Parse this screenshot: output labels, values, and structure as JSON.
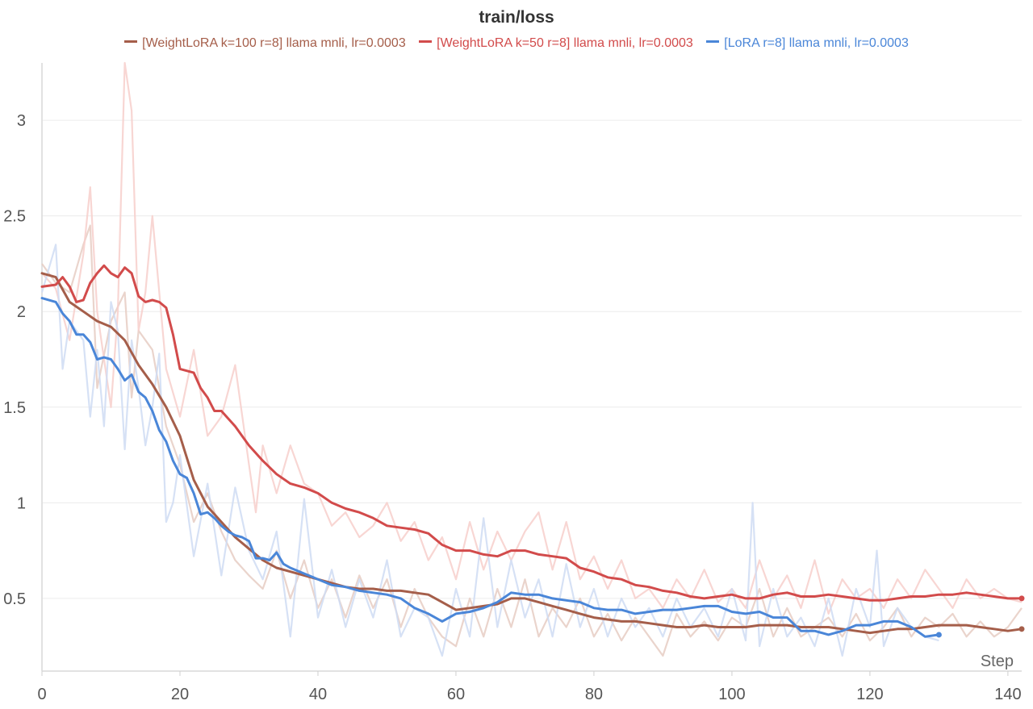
{
  "chart_data": {
    "type": "line",
    "title": "train/loss",
    "xlabel": "Step",
    "ylabel": "",
    "xlim": [
      0,
      142
    ],
    "ylim": [
      0.12,
      3.3
    ],
    "xticks": [
      0,
      20,
      40,
      60,
      80,
      100,
      120,
      140
    ],
    "yticks": [
      0.5,
      1,
      1.5,
      2,
      2.5,
      3
    ],
    "grid": true,
    "legend_position": "top-center",
    "series": [
      {
        "name": "[WeightLoRA k=100 r=8] llama mnli, lr=0.0003",
        "color": "#a55e4a",
        "raw_color": "#e6cdc3",
        "x_smooth": [
          0,
          2,
          4,
          6,
          8,
          10,
          12,
          14,
          16,
          18,
          20,
          22,
          24,
          26,
          28,
          30,
          32,
          34,
          36,
          38,
          40,
          42,
          44,
          46,
          48,
          50,
          52,
          54,
          56,
          58,
          60,
          62,
          64,
          66,
          68,
          70,
          72,
          74,
          76,
          78,
          80,
          82,
          84,
          86,
          88,
          90,
          92,
          94,
          96,
          98,
          100,
          102,
          104,
          106,
          108,
          110,
          112,
          114,
          116,
          118,
          120,
          122,
          124,
          126,
          128,
          130,
          132,
          134,
          136,
          138,
          140,
          142
        ],
        "y_smooth": [
          2.2,
          2.18,
          2.05,
          2.0,
          1.95,
          1.92,
          1.85,
          1.72,
          1.62,
          1.5,
          1.35,
          1.12,
          0.98,
          0.9,
          0.82,
          0.76,
          0.7,
          0.66,
          0.64,
          0.62,
          0.6,
          0.58,
          0.56,
          0.55,
          0.55,
          0.54,
          0.54,
          0.53,
          0.52,
          0.48,
          0.44,
          0.45,
          0.46,
          0.47,
          0.5,
          0.5,
          0.48,
          0.46,
          0.44,
          0.42,
          0.4,
          0.39,
          0.38,
          0.38,
          0.37,
          0.36,
          0.35,
          0.35,
          0.36,
          0.35,
          0.35,
          0.35,
          0.36,
          0.36,
          0.36,
          0.35,
          0.35,
          0.35,
          0.34,
          0.33,
          0.32,
          0.33,
          0.34,
          0.34,
          0.35,
          0.36,
          0.36,
          0.36,
          0.35,
          0.34,
          0.33,
          0.34
        ],
        "x_raw": [
          0,
          2,
          4,
          6,
          7,
          8,
          10,
          12,
          13,
          14,
          16,
          18,
          20,
          22,
          24,
          26,
          28,
          30,
          32,
          34,
          36,
          38,
          40,
          42,
          44,
          46,
          48,
          50,
          52,
          54,
          56,
          58,
          60,
          62,
          64,
          66,
          68,
          70,
          72,
          74,
          76,
          78,
          80,
          82,
          84,
          86,
          88,
          90,
          92,
          94,
          96,
          98,
          100,
          102,
          104,
          106,
          108,
          110,
          112,
          114,
          116,
          118,
          120,
          122,
          124,
          126,
          128,
          130,
          132,
          134,
          136,
          138,
          140,
          142
        ],
        "y_raw": [
          2.25,
          2.15,
          2.1,
          2.35,
          2.45,
          1.6,
          1.95,
          2.1,
          1.55,
          1.9,
          1.8,
          1.4,
          1.2,
          0.9,
          1.05,
          0.85,
          0.7,
          0.62,
          0.55,
          0.75,
          0.5,
          0.7,
          0.45,
          0.6,
          0.4,
          0.62,
          0.45,
          0.6,
          0.35,
          0.55,
          0.4,
          0.3,
          0.25,
          0.5,
          0.3,
          0.55,
          0.35,
          0.6,
          0.3,
          0.45,
          0.35,
          0.5,
          0.3,
          0.42,
          0.28,
          0.4,
          0.3,
          0.2,
          0.42,
          0.3,
          0.38,
          0.28,
          0.4,
          0.35,
          0.55,
          0.3,
          0.45,
          0.3,
          0.35,
          0.4,
          0.3,
          0.42,
          0.28,
          0.35,
          0.45,
          0.3,
          0.4,
          0.35,
          0.42,
          0.3,
          0.38,
          0.3,
          0.35,
          0.45
        ]
      },
      {
        "name": "[WeightLoRA k=50 r=8] llama mnli, lr=0.0003",
        "color": "#d24b4b",
        "raw_color": "#f7cfcb",
        "x_smooth": [
          0,
          2,
          3,
          4,
          5,
          6,
          7,
          8,
          9,
          10,
          11,
          12,
          13,
          14,
          15,
          16,
          17,
          18,
          19,
          20,
          22,
          23,
          24,
          25,
          26,
          28,
          29,
          30,
          32,
          34,
          36,
          38,
          40,
          42,
          44,
          46,
          48,
          50,
          52,
          54,
          56,
          58,
          60,
          62,
          64,
          66,
          68,
          70,
          72,
          74,
          76,
          78,
          80,
          82,
          84,
          86,
          88,
          90,
          92,
          94,
          96,
          98,
          100,
          102,
          104,
          106,
          108,
          110,
          112,
          114,
          116,
          118,
          120,
          122,
          124,
          126,
          128,
          130,
          132,
          134,
          136,
          138,
          140,
          142
        ],
        "y_smooth": [
          2.13,
          2.14,
          2.18,
          2.13,
          2.05,
          2.06,
          2.15,
          2.2,
          2.24,
          2.2,
          2.18,
          2.23,
          2.2,
          2.08,
          2.05,
          2.06,
          2.05,
          2.02,
          1.88,
          1.7,
          1.68,
          1.6,
          1.55,
          1.48,
          1.48,
          1.4,
          1.35,
          1.3,
          1.22,
          1.15,
          1.1,
          1.08,
          1.05,
          1.0,
          0.97,
          0.95,
          0.92,
          0.88,
          0.87,
          0.86,
          0.84,
          0.78,
          0.75,
          0.75,
          0.73,
          0.72,
          0.75,
          0.75,
          0.73,
          0.72,
          0.71,
          0.66,
          0.64,
          0.61,
          0.6,
          0.57,
          0.56,
          0.54,
          0.53,
          0.51,
          0.5,
          0.51,
          0.52,
          0.5,
          0.5,
          0.52,
          0.53,
          0.51,
          0.51,
          0.52,
          0.51,
          0.5,
          0.49,
          0.49,
          0.5,
          0.51,
          0.51,
          0.52,
          0.52,
          0.53,
          0.52,
          0.51,
          0.5,
          0.5
        ],
        "x_raw": [
          0,
          2,
          4,
          6,
          7,
          8,
          10,
          11,
          12,
          13,
          14,
          15,
          16,
          18,
          20,
          22,
          24,
          26,
          28,
          30,
          31,
          32,
          34,
          36,
          38,
          40,
          42,
          44,
          46,
          48,
          50,
          52,
          54,
          56,
          58,
          60,
          62,
          64,
          66,
          68,
          70,
          72,
          74,
          76,
          78,
          80,
          82,
          84,
          86,
          88,
          90,
          92,
          94,
          96,
          98,
          100,
          102,
          104,
          106,
          108,
          110,
          112,
          114,
          116,
          118,
          120,
          122,
          124,
          126,
          128,
          130,
          132,
          134,
          136,
          138,
          140,
          142
        ],
        "y_raw": [
          2.2,
          2.12,
          1.85,
          2.3,
          2.65,
          2.0,
          1.5,
          2.0,
          3.3,
          3.05,
          1.9,
          2.1,
          2.5,
          1.7,
          1.45,
          1.8,
          1.35,
          1.45,
          1.72,
          1.2,
          0.95,
          1.3,
          1.05,
          1.3,
          1.1,
          1.05,
          0.88,
          0.95,
          0.82,
          0.88,
          1.0,
          0.8,
          0.9,
          0.7,
          0.82,
          0.6,
          0.9,
          0.65,
          0.85,
          0.7,
          0.85,
          0.95,
          0.65,
          0.9,
          0.6,
          0.72,
          0.55,
          0.7,
          0.5,
          0.55,
          0.45,
          0.6,
          0.5,
          0.65,
          0.48,
          0.55,
          0.45,
          0.7,
          0.5,
          0.62,
          0.45,
          0.7,
          0.42,
          0.6,
          0.5,
          0.55,
          0.45,
          0.6,
          0.5,
          0.65,
          0.55,
          0.45,
          0.6,
          0.5,
          0.55,
          0.5,
          0.48
        ]
      },
      {
        "name": "[LoRA r=8] llama mnli, lr=0.0003",
        "color": "#4a86d8",
        "raw_color": "#cfdcf3",
        "x_smooth": [
          0,
          2,
          3,
          4,
          5,
          6,
          7,
          8,
          9,
          10,
          11,
          12,
          13,
          14,
          15,
          16,
          17,
          18,
          19,
          20,
          21,
          22,
          23,
          24,
          25,
          26,
          27,
          28,
          29,
          30,
          31,
          32,
          33,
          34,
          35,
          36,
          38,
          40,
          42,
          44,
          46,
          48,
          50,
          52,
          54,
          56,
          58,
          60,
          62,
          64,
          66,
          68,
          70,
          72,
          74,
          76,
          78,
          80,
          82,
          84,
          86,
          88,
          90,
          92,
          94,
          96,
          98,
          100,
          102,
          104,
          106,
          108,
          110,
          112,
          114,
          116,
          118,
          120,
          122,
          124,
          126,
          128,
          130
        ],
        "y_smooth": [
          2.07,
          2.05,
          1.99,
          1.95,
          1.88,
          1.88,
          1.84,
          1.75,
          1.76,
          1.75,
          1.7,
          1.64,
          1.67,
          1.58,
          1.55,
          1.48,
          1.38,
          1.32,
          1.22,
          1.15,
          1.13,
          1.05,
          0.94,
          0.95,
          0.92,
          0.88,
          0.85,
          0.83,
          0.82,
          0.8,
          0.71,
          0.71,
          0.7,
          0.74,
          0.68,
          0.66,
          0.63,
          0.6,
          0.57,
          0.56,
          0.54,
          0.53,
          0.52,
          0.5,
          0.45,
          0.42,
          0.38,
          0.42,
          0.43,
          0.45,
          0.48,
          0.53,
          0.52,
          0.52,
          0.5,
          0.49,
          0.48,
          0.45,
          0.44,
          0.44,
          0.42,
          0.43,
          0.44,
          0.44,
          0.45,
          0.46,
          0.46,
          0.43,
          0.42,
          0.43,
          0.4,
          0.4,
          0.33,
          0.33,
          0.31,
          0.33,
          0.36,
          0.36,
          0.38,
          0.38,
          0.35,
          0.3,
          0.31
        ],
        "x_raw": [
          0,
          2,
          3,
          4,
          6,
          7,
          8,
          9,
          10,
          11,
          12,
          13,
          14,
          15,
          16,
          17,
          18,
          19,
          20,
          22,
          24,
          26,
          28,
          30,
          32,
          34,
          36,
          38,
          40,
          42,
          44,
          46,
          48,
          50,
          52,
          54,
          56,
          58,
          60,
          62,
          64,
          66,
          68,
          70,
          72,
          74,
          76,
          78,
          80,
          82,
          84,
          86,
          88,
          90,
          92,
          94,
          96,
          98,
          100,
          102,
          103,
          104,
          106,
          108,
          110,
          112,
          114,
          116,
          118,
          120,
          121,
          122,
          124,
          126,
          128,
          130
        ],
        "y_raw": [
          2.1,
          2.35,
          1.7,
          1.95,
          1.85,
          1.45,
          1.8,
          1.4,
          2.05,
          1.9,
          1.28,
          1.85,
          1.6,
          1.3,
          1.5,
          1.78,
          0.9,
          1.0,
          1.25,
          0.72,
          1.1,
          0.62,
          1.08,
          0.75,
          0.6,
          0.85,
          0.3,
          1.02,
          0.4,
          0.65,
          0.35,
          0.6,
          0.4,
          0.7,
          0.3,
          0.45,
          0.4,
          0.2,
          0.55,
          0.3,
          0.92,
          0.35,
          0.7,
          0.4,
          0.6,
          0.3,
          0.68,
          0.35,
          0.55,
          0.3,
          0.5,
          0.35,
          0.45,
          0.3,
          0.5,
          0.35,
          0.45,
          0.3,
          0.55,
          0.28,
          1.0,
          0.25,
          0.55,
          0.3,
          0.4,
          0.25,
          0.5,
          0.2,
          0.55,
          0.35,
          0.75,
          0.25,
          0.45,
          0.35,
          0.3,
          0.28
        ]
      }
    ]
  }
}
